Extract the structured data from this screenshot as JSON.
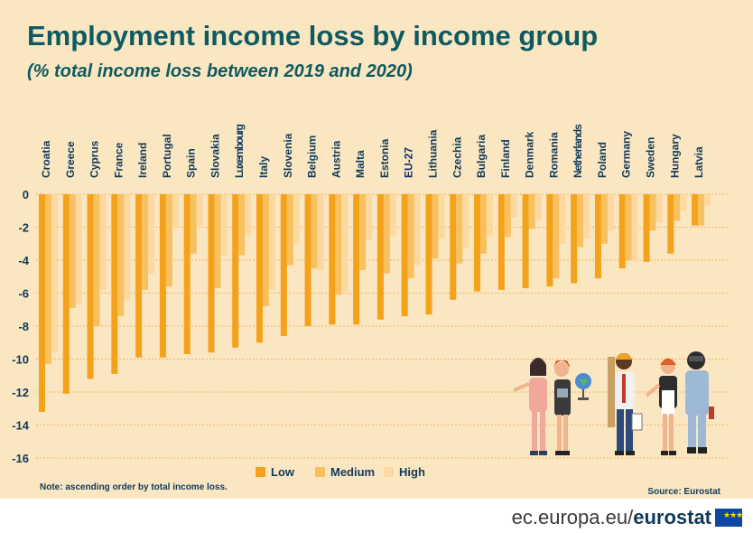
{
  "title": "Employment income loss by income group",
  "subtitle": "(% total income loss between 2019 and 2020)",
  "note": "Note: ascending order by total income loss.",
  "source": "Source:  Eurostat",
  "footer": {
    "site": "ec.europa.eu/",
    "brand": "eurostat"
  },
  "colors": {
    "panel": "#fbe6c2",
    "low": "#f5a21b",
    "medium": "#f8c15f",
    "high": "#fbd9a0",
    "title": "#0e5a61",
    "grid": "#e9b65e"
  },
  "chart_data": {
    "type": "bar",
    "categories": [
      "Croatia",
      "Greece",
      "Cyprus",
      "France",
      "Ireland",
      "Portugal",
      "Spain",
      "Slovakia",
      "Luxembourg",
      "Italy",
      "Slovenia",
      "Belgium",
      "Austria",
      "Malta",
      "Estonia",
      "EU-27",
      "Lithuania",
      "Czechia",
      "Bulgaria",
      "Finland",
      "Denmark",
      "Romania",
      "Netherlands",
      "Poland",
      "Germany",
      "Sweden",
      "Hungary",
      "Latvia"
    ],
    "highlight": "EU-27",
    "series": [
      {
        "name": "Low",
        "values": [
          -13.2,
          -12.1,
          -11.2,
          -10.9,
          -9.9,
          -9.9,
          -9.7,
          -9.6,
          -9.3,
          -9.0,
          -8.6,
          -8.0,
          -7.9,
          -7.9,
          -7.6,
          -7.4,
          -7.3,
          -6.4,
          -5.9,
          -5.8,
          -5.7,
          -5.6,
          -5.4,
          -5.1,
          -4.5,
          -4.1,
          -3.6,
          -1.9
        ]
      },
      {
        "name": "Medium",
        "values": [
          -10.3,
          -6.9,
          -8.0,
          -7.4,
          -5.8,
          -5.6,
          -3.6,
          -5.7,
          -3.7,
          -6.8,
          -4.3,
          -4.5,
          -6.1,
          -4.6,
          -4.8,
          -5.1,
          -3.9,
          -4.2,
          -3.6,
          -2.6,
          -2.1,
          -5.1,
          -3.2,
          -3.0,
          -4.0,
          -2.2,
          -1.6,
          -1.9
        ]
      },
      {
        "name": "High",
        "values": [
          -9.6,
          -6.7,
          -5.8,
          -6.4,
          -4.8,
          -2.0,
          -1.9,
          -3.7,
          -2.5,
          -5.8,
          -3.0,
          -4.6,
          -5.9,
          -2.8,
          -2.5,
          -4.3,
          -2.7,
          -3.3,
          -2.5,
          -1.4,
          -1.6,
          -3.0,
          -2.7,
          -2.2,
          -4.1,
          -1.7,
          -1.0,
          -0.7
        ]
      }
    ],
    "y_ticks": [
      "0",
      "-2",
      "-4",
      "-6",
      "-8",
      "-10",
      "-12",
      "-14",
      "-16"
    ],
    "ylim": [
      -16,
      0
    ],
    "grid": true,
    "legend": "bottom-center",
    "xlabel": "",
    "ylabel": ""
  }
}
